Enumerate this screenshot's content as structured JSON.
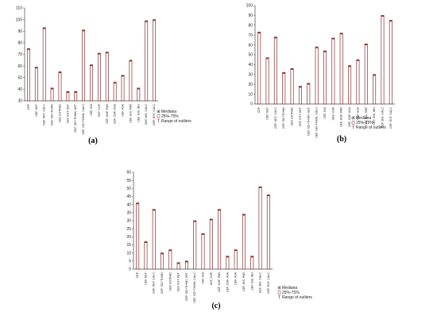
{
  "chart_data": [
    {
      "type": "bar",
      "panel_label": "(a)",
      "categories": [
        "CEF",
        "CEF, KET",
        "CEF, KET, CALC",
        "CEF, GD+THWN",
        "CEF, ESTRAD",
        "CEF, EST, KET",
        "CEF, GD+THWN, KET",
        "CEF, GD+THWN, CALC",
        "CEF, BIS",
        "CEF, COF",
        "CEF, KOF, PAR",
        "CEF, COF, ASA",
        "CEF, ASA",
        "CEF, BIS, PAR",
        "CEF, BIS, IBU",
        "CEF, BIS, CALC",
        "CEF, EST, CALC"
      ],
      "values": [
        75,
        59,
        93,
        41,
        55,
        38,
        38,
        91,
        61,
        71,
        72,
        46,
        52,
        65,
        41,
        99,
        100
      ],
      "ylim": [
        30,
        110
      ],
      "yticks": [
        "30",
        "40",
        "50",
        "60",
        "70",
        "80",
        "90",
        "100",
        "110"
      ],
      "grid": false,
      "legend": [
        "Mediana",
        "25%-75%",
        "Range of outliers"
      ],
      "legend_position": "bottom-right"
    },
    {
      "type": "bar",
      "panel_label": "(b)",
      "categories": [
        "CEF",
        "CEF, KET",
        "CEF, KET, CALC",
        "CEF, GD+THWN",
        "CEF, ESTRAD",
        "CEF, EST, KET",
        "CEF, GD+THWN, KET",
        "CEF, GD+THWN, CALC",
        "CEF, BIS",
        "CEF, COF",
        "CEF, KOF, PAR",
        "CEF, COF, ASA",
        "CEF, ASA",
        "CEF, BIS, PAR",
        "CEF, BIS, IBU",
        "CEF, BIS, CALC",
        "CEF, EST, CALC"
      ],
      "values": [
        73,
        47,
        68,
        32,
        36,
        18,
        21,
        58,
        54,
        67,
        72,
        39,
        45,
        61,
        30,
        90,
        85
      ],
      "ylim": [
        0,
        100
      ],
      "yticks": [
        "0",
        "10",
        "20",
        "30",
        "40",
        "50",
        "60",
        "70",
        "80",
        "90",
        "100"
      ],
      "grid": false,
      "legend": [
        "Mediana",
        "25%-75%",
        "Range of outliers"
      ],
      "legend_position": "bottom-right"
    },
    {
      "type": "bar",
      "panel_label": "(c)",
      "categories": [
        "CEF",
        "CEF, KET",
        "CEF, KET, CALC",
        "CEF, GD+THWN",
        "CEF, ESTRAD",
        "CEF, EST, KET",
        "CEF, GD+THWN, KET",
        "CEF, GD+THWN, CALC",
        "CEF, BIS",
        "CEF, COF",
        "CEF, KOF, PAR",
        "CEF, COF, ASA",
        "CEF, ASA",
        "CEF, BIS, PAR",
        "CEF, BIS, IBU",
        "CEF, BIS, CALC",
        "CEF, EST, CALC"
      ],
      "values": [
        41,
        17,
        37,
        10,
        12,
        4,
        5,
        30,
        22,
        31,
        37,
        8,
        12,
        34,
        8,
        51,
        46
      ],
      "ylim": [
        0,
        60
      ],
      "yticks": [
        "0",
        "5",
        "10",
        "15",
        "20",
        "25",
        "30",
        "35",
        "40",
        "45",
        "50",
        "55",
        "60"
      ],
      "grid": false,
      "legend": [
        "Mediana",
        "25%-75%",
        "Range of outliers"
      ],
      "legend_position": "bottom-right"
    }
  ],
  "colors": {
    "bar_edge": "#8b2f2f",
    "bar_fill": "#ffffff",
    "axis": "#444444"
  }
}
